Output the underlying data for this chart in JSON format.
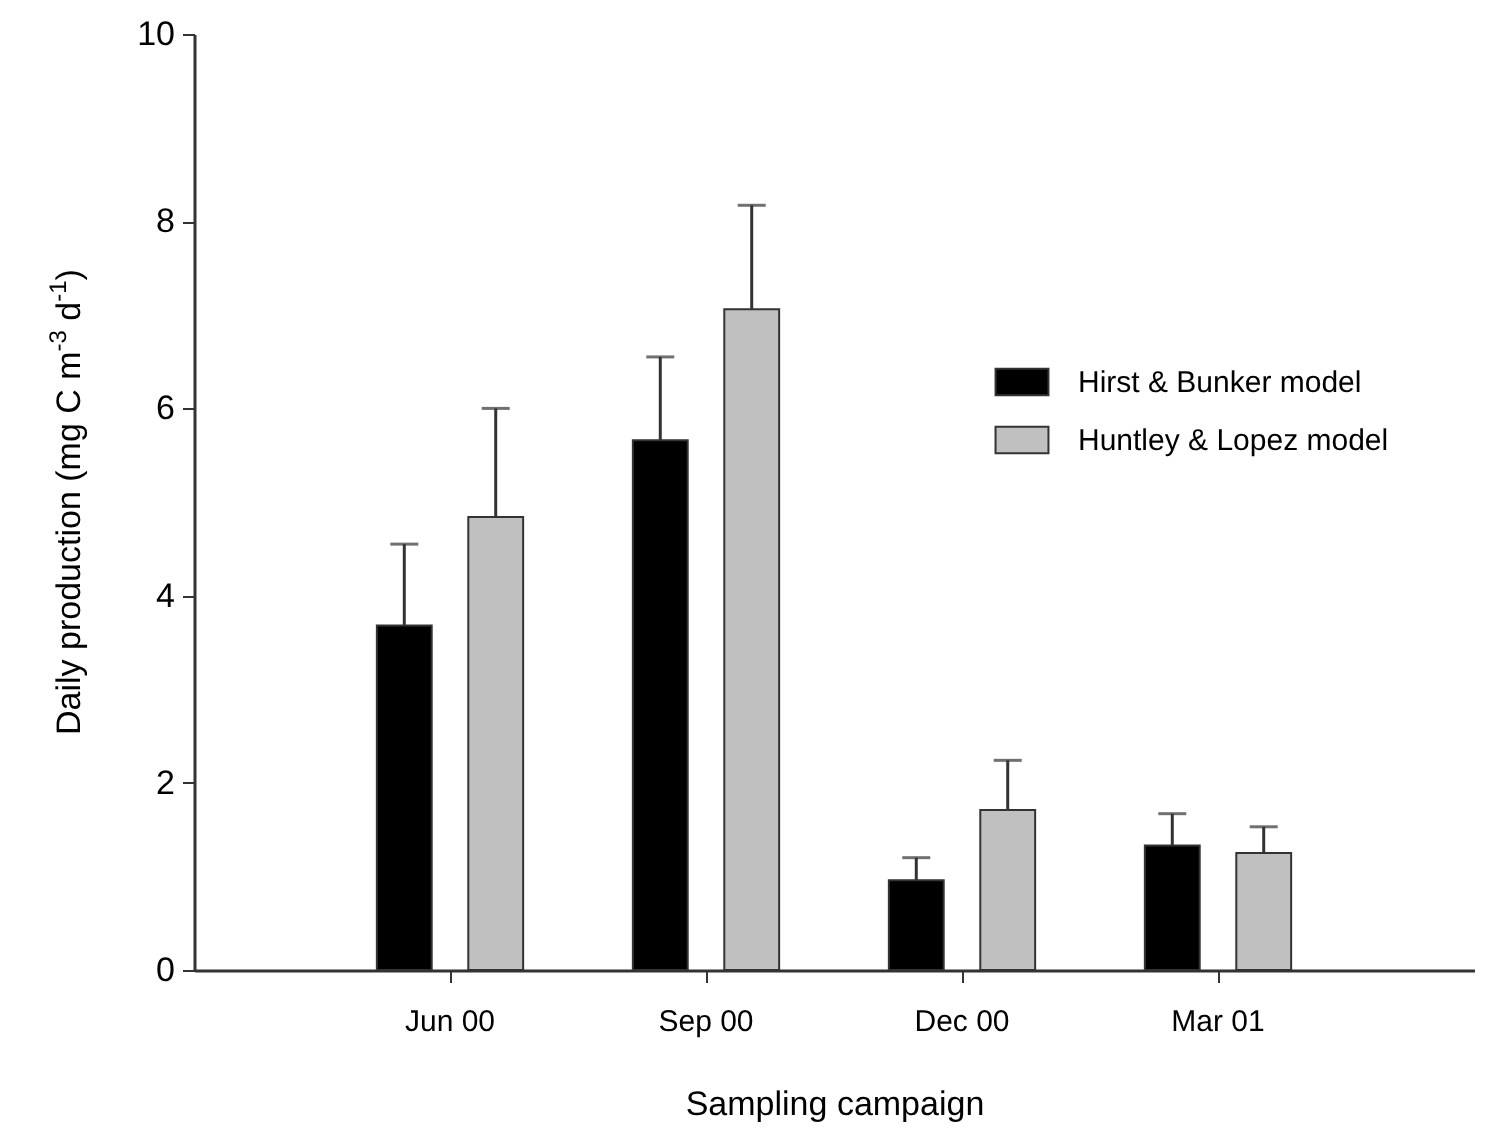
{
  "chart_data": {
    "type": "bar",
    "xlabel": "Sampling campaign",
    "ylabel": "Daily production (mg C m$^{-3}$ d$^{-1}$)",
    "categories": [
      "Jun 00",
      "Sep 00",
      "Dec 00",
      "Mar 01"
    ],
    "series": [
      {
        "name": "Hirst & Bunker model",
        "color": "#000000",
        "values": [
          3.68,
          5.66,
          0.96,
          1.33
        ],
        "errors": [
          [
            3.68,
            4.55
          ],
          [
            5.66,
            6.55
          ],
          [
            0.96,
            1.2
          ],
          [
            1.33,
            1.67
          ]
        ]
      },
      {
        "name": "Huntley & Lopez model",
        "color": "#c0c0c0",
        "values": [
          4.84,
          7.06,
          1.71,
          1.25
        ],
        "errors": [
          [
            4.84,
            6.0
          ],
          [
            7.06,
            8.17
          ],
          [
            1.71,
            2.24
          ],
          [
            1.25,
            1.53
          ]
        ]
      }
    ],
    "ylim": [
      0,
      10
    ],
    "yticks": [
      0,
      2,
      4,
      6,
      8,
      10
    ],
    "grid": false,
    "legend": "top right"
  }
}
